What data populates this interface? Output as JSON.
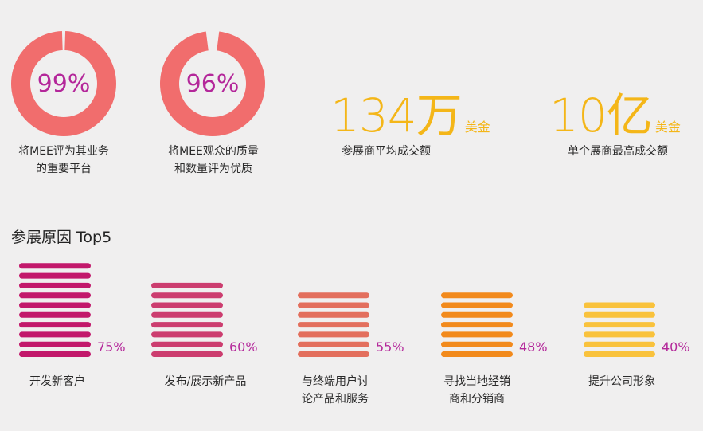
{
  "stats": {
    "donuts": [
      {
        "pct_label": "99%",
        "value": 99,
        "caption": [
          "将MEE评为其业务",
          "的重要平台"
        ]
      },
      {
        "pct_label": "96%",
        "value": 96,
        "caption": [
          "将MEE观众的质量",
          "和数量评为优质"
        ]
      }
    ],
    "big": [
      {
        "number": "134万",
        "unit": "美金",
        "caption": "参展商平均成交额"
      },
      {
        "number": "10亿",
        "unit": "美金",
        "caption": "单个展商最高成交额"
      }
    ]
  },
  "colors": {
    "donut": "#f16d6d",
    "pct_text": "#b4279a",
    "accent_yellow": "#f4b618",
    "bar_colors": [
      "#c2186b",
      "#cc3d6f",
      "#e36f5d",
      "#f28a1c",
      "#f9c23c"
    ]
  },
  "chart_data": {
    "type": "bar",
    "title": "参展原因 Top5",
    "categories": [
      [
        "开发新客户"
      ],
      [
        "发布/展示新产品"
      ],
      [
        "与终端用户讨",
        "论产品和服务"
      ],
      [
        "寻找当地经销",
        "商和分销商"
      ],
      [
        "提升公司形象"
      ]
    ],
    "values": [
      75,
      60,
      55,
      48,
      40
    ],
    "value_labels": [
      "75%",
      "60%",
      "55%",
      "48%",
      "40%"
    ]
  }
}
